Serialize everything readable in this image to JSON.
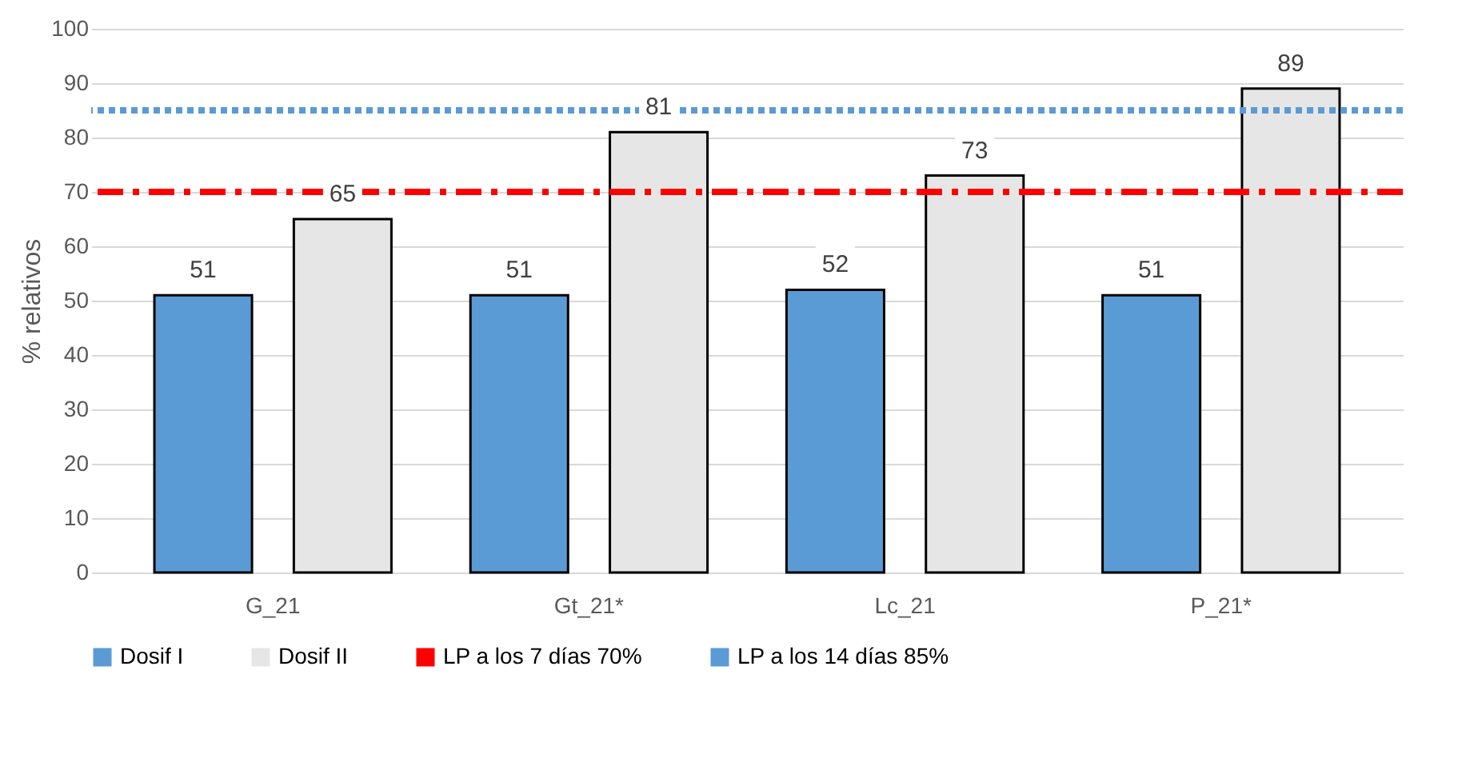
{
  "chart_data": {
    "type": "bar",
    "ylabel": "% relativos",
    "categories": [
      "G_21",
      "Gt_21*",
      "Lc_21",
      "P_21*"
    ],
    "series": [
      {
        "name": "Dosif I",
        "color": "#5b9bd5",
        "values": [
          51,
          51,
          52,
          51
        ]
      },
      {
        "name": "Dosif II",
        "color": "#e7e6e6",
        "values": [
          65,
          81,
          73,
          89
        ]
      }
    ],
    "ylim": [
      0,
      100
    ],
    "yticks": [
      0,
      10,
      20,
      30,
      40,
      50,
      60,
      70,
      80,
      90,
      100
    ],
    "grid": "y",
    "data_labels": true,
    "legend": "bottom",
    "ref_lines": [
      {
        "axis": "y",
        "value": 70,
        "label": "LP a los 7 días 70%",
        "color": "#ff0000",
        "line_style": "dashed"
      },
      {
        "axis": "y",
        "value": 85,
        "label": "LP a los 14 días 85%",
        "color": "#5b9bd5",
        "line_style": "dotted"
      }
    ]
  }
}
